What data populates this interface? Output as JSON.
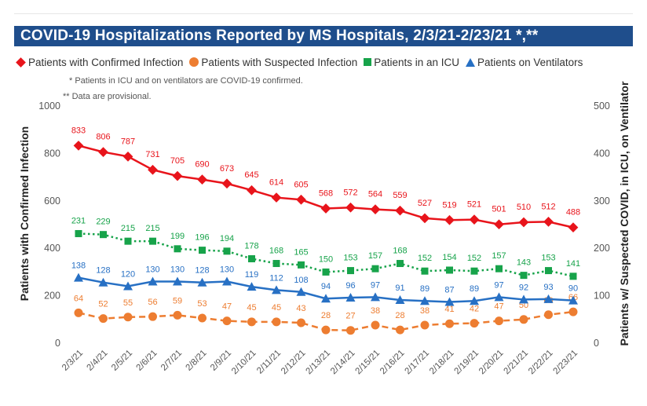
{
  "title": "COVID-19 Hospitalizations Reported by MS Hospitals, 2/3/21-2/23/21 *,**",
  "notes": [
    "* Patients in ICU and on ventilators are COVID-19 confirmed.",
    "** Data are provisional."
  ],
  "colors": {
    "title_bg": "#1f4e8c",
    "confirmed": "#e8141b",
    "suspected": "#ed7d31",
    "icu": "#17a34a",
    "ventilators": "#2770c4"
  },
  "chart_data": {
    "type": "line",
    "categories": [
      "2/3/21",
      "2/4/21",
      "2/5/21",
      "2/6/21",
      "2/7/21",
      "2/8/21",
      "2/9/21",
      "2/10/21",
      "2/11/21",
      "2/12/21",
      "2/13/21",
      "2/14/21",
      "2/15/21",
      "2/16/21",
      "2/17/21",
      "2/18/21",
      "2/19/21",
      "2/20/21",
      "2/21/21",
      "2/22/21",
      "2/23/21"
    ],
    "ylabel": "Patients with Confirmed Infection",
    "y2label": "Patients w/ Suspected COVID, in ICU, on Ventilator",
    "ylim": [
      0,
      1000
    ],
    "y2lim": [
      0,
      500
    ],
    "yticks": [
      "0",
      "200",
      "400",
      "600",
      "800",
      "1000"
    ],
    "y2ticks": [
      "0",
      "100",
      "200",
      "300",
      "400",
      "500"
    ],
    "grid": false,
    "legend_position": "top",
    "series": [
      {
        "name": "Patients with Confirmed Infection",
        "axis": "left",
        "marker": "diamond",
        "line": "solid",
        "values": [
          833,
          806,
          787,
          731,
          705,
          690,
          673,
          645,
          614,
          605,
          568,
          572,
          564,
          559,
          527,
          519,
          521,
          501,
          510,
          512,
          488
        ]
      },
      {
        "name": "Patients with Suspected Infection",
        "axis": "right",
        "marker": "circle",
        "line": "dashed",
        "values": [
          64,
          52,
          55,
          56,
          59,
          53,
          47,
          45,
          45,
          43,
          28,
          27,
          38,
          28,
          38,
          41,
          42,
          47,
          50,
          60,
          66
        ]
      },
      {
        "name": "Patients in an ICU",
        "axis": "right",
        "marker": "square",
        "line": "dotted",
        "values": [
          231,
          229,
          215,
          215,
          199,
          196,
          194,
          178,
          168,
          165,
          150,
          153,
          157,
          168,
          152,
          154,
          152,
          157,
          143,
          153,
          141
        ]
      },
      {
        "name": "Patients on Ventilators",
        "axis": "right",
        "marker": "triangle",
        "line": "solid",
        "values": [
          138,
          128,
          120,
          130,
          130,
          128,
          130,
          119,
          112,
          108,
          94,
          96,
          97,
          91,
          89,
          87,
          89,
          97,
          92,
          93,
          90
        ]
      }
    ]
  }
}
